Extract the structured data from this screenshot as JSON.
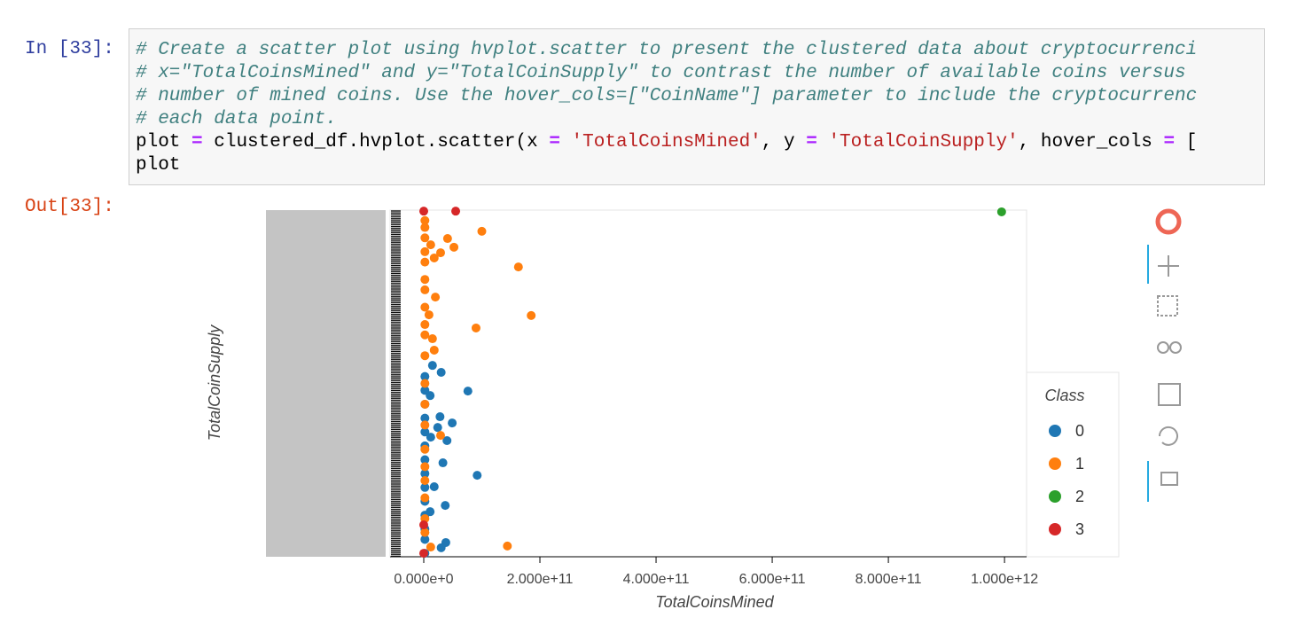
{
  "cell": {
    "in_prompt": "In [33]:",
    "out_prompt": "Out[33]:",
    "comments": [
      "# Create a scatter plot using hvplot.scatter to present the clustered data about cryptocurrenci",
      "# x=\"TotalCoinsMined\" and y=\"TotalCoinSupply\" to contrast the number of available coins versus",
      "# number of mined coins. Use the hover_cols=[\"CoinName\"] parameter to include the cryptocurrenc",
      "# each data point."
    ],
    "code_line": [
      "plot",
      "=",
      "clustered_df.hvplot.scatter(x",
      "=",
      "'TotalCoinsMined'",
      ", y",
      "=",
      "'TotalCoinSupply'",
      ", hover_cols",
      "=",
      "["
    ],
    "code_last": "plot"
  },
  "chart_data": {
    "type": "scatter",
    "x_label": "TotalCoinsMined",
    "y_label": "TotalCoinSupply",
    "xlim": [
      -58000000000,
      1038000000000
    ],
    "xticks": [
      {
        "value": 0,
        "label": "0.000e+0"
      },
      {
        "value": 200000000000,
        "label": "2.000e+11"
      },
      {
        "value": 400000000000,
        "label": "4.000e+11"
      },
      {
        "value": 600000000000,
        "label": "6.000e+11"
      },
      {
        "value": 800000000000,
        "label": "8.000e+11"
      },
      {
        "value": 1000000000000,
        "label": "1.000e+12"
      }
    ],
    "ylim": [
      0,
      100
    ],
    "legend_title": "Class",
    "legend": "right",
    "series": [
      {
        "name": "0",
        "color": "#1f77b4",
        "x": [
          15000000000,
          30000000000,
          76000000000,
          11000000000,
          28000000000,
          49000000000,
          24000000000,
          40000000000,
          12000000000,
          33000000000,
          92000000000,
          18000000000,
          37000000000,
          11000000000,
          38000000000,
          30000000000,
          2000000000,
          2000000000,
          2000000000,
          2000000000,
          2000000000,
          2000000000,
          2000000000,
          2000000000,
          2000000000,
          2000000000,
          2000000000,
          2000000000,
          2000000000,
          2000000000
        ],
        "y": [
          55.2,
          53.2,
          47.8,
          46.5,
          40.4,
          38.6,
          37.3,
          33.5,
          34.5,
          27.1,
          23.5,
          20.2,
          14.8,
          13,
          4.1,
          2.6,
          52,
          48,
          44,
          40,
          36,
          32,
          28,
          24,
          20,
          16,
          12,
          8,
          5,
          1
        ]
      },
      {
        "name": "1",
        "color": "#ff7f0e",
        "x": [
          100000000000,
          41000000000,
          52000000000,
          29000000000,
          18000000000,
          12000000000,
          163000000000,
          20000000000,
          185000000000,
          90000000000,
          9000000000,
          15000000000,
          18000000000,
          29000000000,
          144000000000,
          12000000000,
          2000000000,
          2000000000,
          2000000000,
          2000000000,
          2000000000,
          2000000000,
          2000000000,
          2000000000,
          2000000000,
          2000000000,
          2000000000,
          2000000000,
          2000000000,
          2000000000,
          2000000000,
          2000000000,
          2000000000,
          2000000000,
          2000000000,
          2000000000
        ],
        "y": [
          93.9,
          91.8,
          89.3,
          87.7,
          86.2,
          90,
          83.6,
          74.9,
          69.6,
          66,
          69.8,
          62.9,
          59.6,
          35,
          3.1,
          2.8,
          97,
          95,
          92,
          88,
          85,
          80,
          77,
          72,
          67,
          64,
          58,
          50,
          44,
          38,
          31,
          26,
          22,
          17,
          11,
          7
        ]
      },
      {
        "name": "2",
        "color": "#2ca02c",
        "x": [
          995000000000
        ],
        "y": [
          99.5
        ]
      },
      {
        "name": "3",
        "color": "#d62728",
        "x": [
          0,
          55000000000,
          0,
          0
        ],
        "y": [
          99.7,
          99.7,
          9.2,
          1
        ]
      }
    ]
  }
}
